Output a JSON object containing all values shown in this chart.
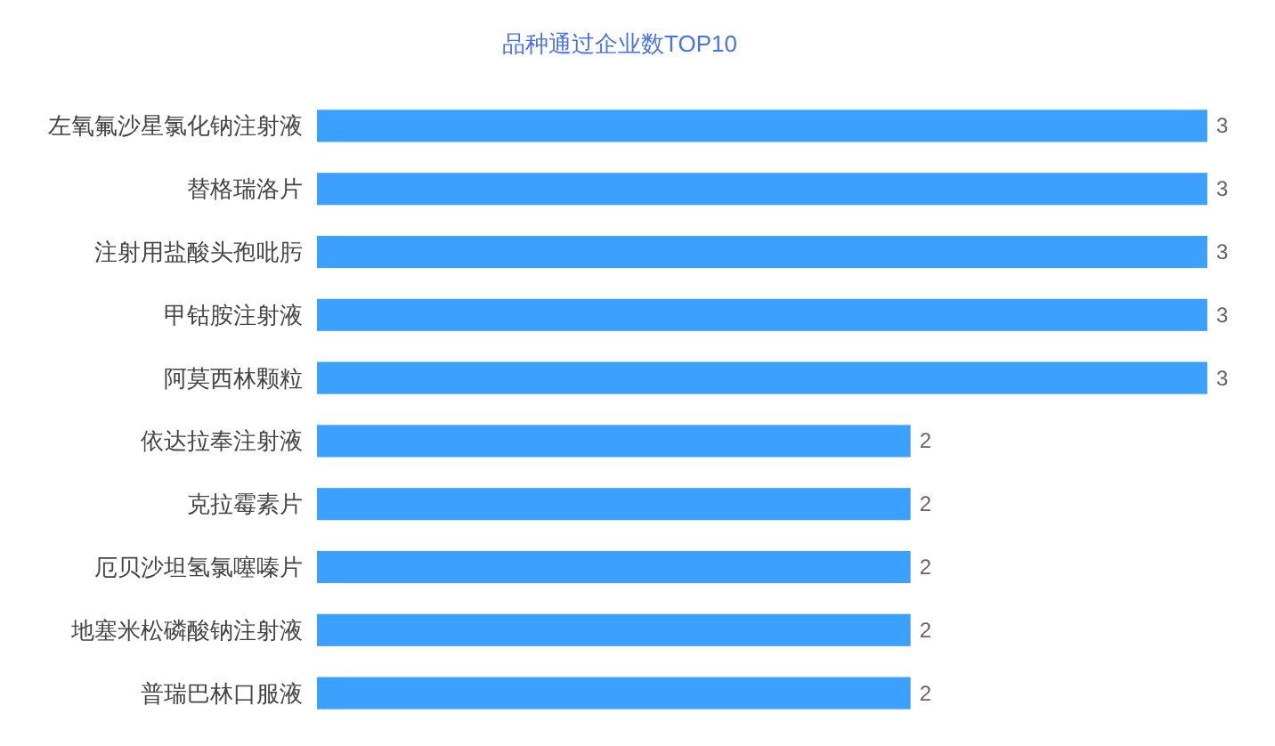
{
  "chart_data": {
    "type": "bar",
    "orientation": "horizontal",
    "title": "品种通过企业数TOP10",
    "categories": [
      "左氧氟沙星氯化钠注射液",
      "替格瑞洛片",
      "注射用盐酸头孢吡肟",
      "甲钴胺注射液",
      "阿莫西林颗粒",
      "依达拉奉注射液",
      "克拉霉素片",
      "厄贝沙坦氢氯噻嗪片",
      "地塞米松磷酸钠注射液",
      "普瑞巴林口服液"
    ],
    "values": [
      3,
      3,
      3,
      3,
      3,
      2,
      2,
      2,
      2,
      2
    ],
    "color": "#3ca0ff",
    "xlim": [
      0,
      3
    ],
    "tick_labels": "y",
    "data_labels": true
  }
}
